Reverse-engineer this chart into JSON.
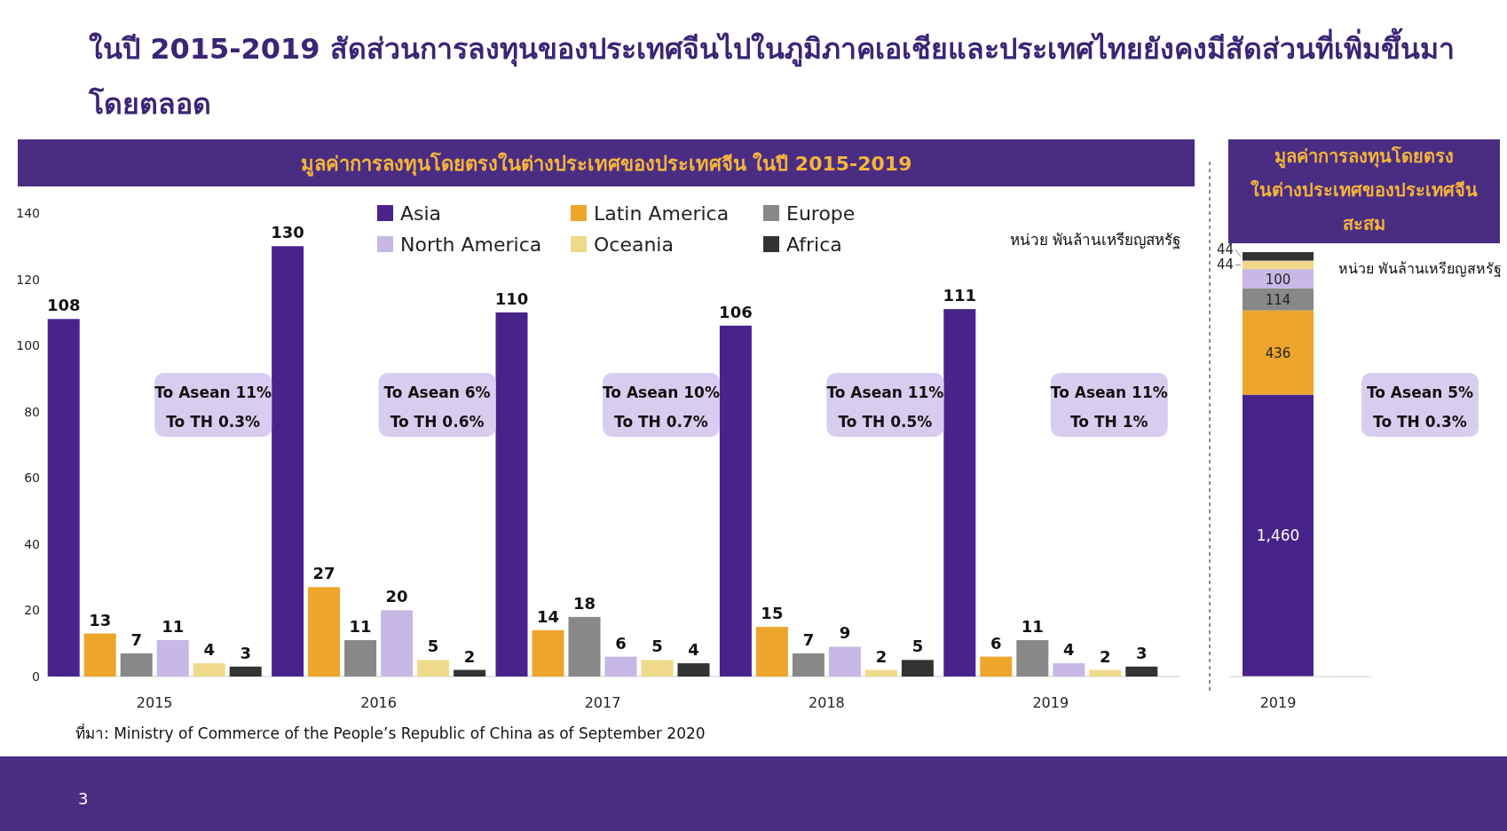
{
  "chart_data": [
    {
      "type": "bar",
      "title": "ในปี 2015-2019 สัดส่วนการลงทุนของประเทศจีนไปในภูมิภาคเอเชียและประเทศไทยยังคงมีสัดส่วนที่เพิ่มขึ้นมา\nโดยตลอด",
      "subtitle": "มูลค่าการลงทุนโดยตรงในต่างประเทศของประเทศจีน ในปี 2015-2019",
      "categories": [
        "2015",
        "2016",
        "2017",
        "2018",
        "2019"
      ],
      "series": [
        {
          "name": "Asia",
          "color": "#47238a",
          "values": [
            108,
            130,
            110,
            106,
            111
          ]
        },
        {
          "name": "Latin America",
          "color": "#eea52c",
          "values": [
            13,
            27,
            14,
            15,
            6
          ]
        },
        {
          "name": "Europe",
          "color": "#888888",
          "values": [
            7,
            11,
            18,
            7,
            11
          ]
        },
        {
          "name": "North America",
          "color": "#c8b8e6",
          "values": [
            11,
            20,
            6,
            9,
            4
          ]
        },
        {
          "name": "Oceania",
          "color": "#efd98a",
          "values": [
            4,
            5,
            5,
            2,
            2
          ]
        },
        {
          "name": "Africa",
          "color": "#333333",
          "values": [
            3,
            2,
            4,
            5,
            3
          ]
        }
      ],
      "ylim": [
        0,
        140
      ],
      "yticks": [
        0,
        20,
        40,
        60,
        80,
        100,
        120,
        140
      ],
      "data_labels": true,
      "legend": "top",
      "annotations": [
        "หน่วย พันล้านเหรียญสหรัฐ",
        "To Asean 11%\nTo TH 0.3%",
        "To Asean 6%\nTo TH 0.6%",
        "To Asean 10%\nTo TH 0.7%",
        "To Asean 11%\nTo TH 0.5%",
        "To Asean 11%\nTo TH 1%",
        "ที่มา: Ministry of Commerce of the People’s Republic of China as of September 2020",
        "3"
      ]
    },
    {
      "type": "bar",
      "title": "มูลค่าการลงทุนโดยตรง\nในต่างประเทศของประเทศจีน\nสะสม",
      "categories": [
        "2019"
      ],
      "stacked": true,
      "series": [
        {
          "color": "#47238a",
          "values": [
            1460
          ],
          "value_labels": [
            "1,460"
          ]
        },
        {
          "color": "#eea52c",
          "values": [
            436
          ],
          "value_labels": [
            "436"
          ]
        },
        {
          "color": "#888888",
          "values": [
            114
          ],
          "value_labels": [
            "114"
          ]
        },
        {
          "color": "#c8b8e6",
          "values": [
            100
          ],
          "value_labels": [
            "100"
          ]
        },
        {
          "color": "#efd98a",
          "values": [
            44
          ],
          "value_labels": [
            "44"
          ]
        },
        {
          "color": "#333333",
          "values": [
            44
          ],
          "value_labels": [
            "44"
          ]
        }
      ],
      "annotations": [
        "หน่วย พันล้านเหรียญสหรัฐ",
        "To Asean 5%\nTo TH 0.3%"
      ]
    }
  ]
}
